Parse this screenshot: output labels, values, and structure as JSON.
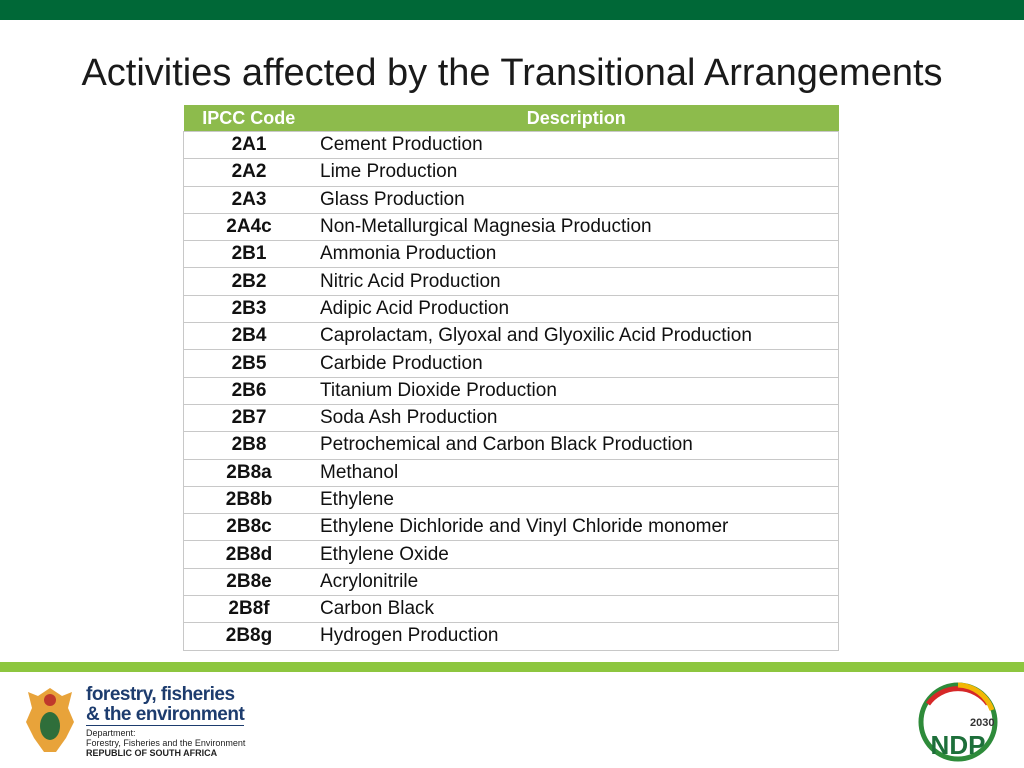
{
  "title": "Activities affected by the Transitional Arrangements",
  "table": {
    "header": [
      "IPCC Code",
      "Description"
    ],
    "rows": [
      [
        "2A1",
        "Cement Production"
      ],
      [
        "2A2",
        "Lime Production"
      ],
      [
        "2A3",
        "Glass Production"
      ],
      [
        "2A4c",
        "Non-Metallurgical Magnesia Production"
      ],
      [
        "2B1",
        "Ammonia Production"
      ],
      [
        "2B2",
        "Nitric Acid Production"
      ],
      [
        "2B3",
        "Adipic Acid Production"
      ],
      [
        "2B4",
        "Caprolactam, Glyoxal and Glyoxilic Acid Production"
      ],
      [
        "2B5",
        "Carbide Production"
      ],
      [
        "2B6",
        "Titanium Dioxide Production"
      ],
      [
        "2B7",
        "Soda Ash Production"
      ],
      [
        "2B8",
        "Petrochemical and Carbon Black Production"
      ],
      [
        "2B8a",
        "Methanol"
      ],
      [
        "2B8b",
        "Ethylene"
      ],
      [
        "2B8c",
        "Ethylene Dichloride and Vinyl Chloride monomer"
      ],
      [
        "2B8d",
        "Ethylene Oxide"
      ],
      [
        "2B8e",
        "Acrylonitrile"
      ],
      [
        "2B8f",
        "Carbon Black"
      ],
      [
        "2B8g",
        "Hydrogen Production"
      ]
    ]
  },
  "footer": {
    "logo_line1": "forestry, fisheries",
    "logo_line2": "& the environment",
    "dept_label": "Department:",
    "dept_name": "Forestry, Fisheries and the Environment",
    "country": "REPUBLIC OF SOUTH AFRICA",
    "ndp_year": "2030",
    "ndp_text": "NDP"
  }
}
